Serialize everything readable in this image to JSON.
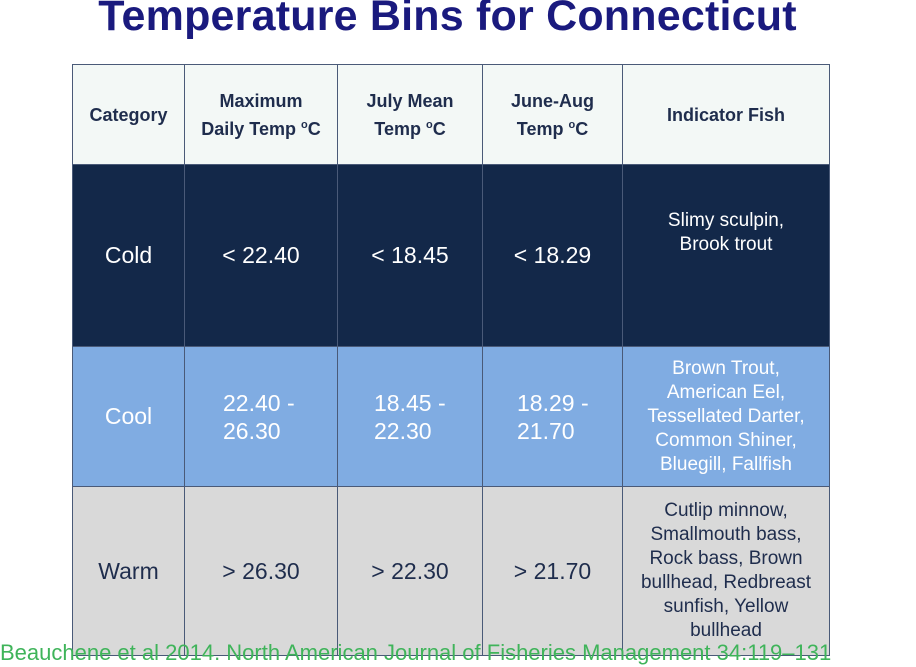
{
  "title": "Temperature Bins for Connecticut",
  "table": {
    "headers": {
      "category": "Category",
      "max_daily_line1": "Maximum",
      "max_daily_line2": "Daily Temp",
      "july_mean_line1": "July Mean",
      "july_mean_line2": "Temp",
      "june_aug_line1": "June-Aug",
      "june_aug_line2": "Temp",
      "unit_sup": "o",
      "unit": "C",
      "indicator_fish": "Indicator Fish"
    },
    "rows": [
      {
        "category": "Cold",
        "max_daily": "< 22.40",
        "july_mean": "< 18.45",
        "june_aug": "< 18.29",
        "fish": [
          "Slimy sculpin,",
          "Brook trout"
        ]
      },
      {
        "category": "Cool",
        "max_daily_line1": "22.40 -",
        "max_daily_line2": "26.30",
        "july_mean_line1": "18.45 -",
        "july_mean_line2": "22.30",
        "june_aug_line1": "18.29 -",
        "june_aug_line2": "21.70",
        "fish": [
          "Brown Trout,",
          "American Eel,",
          "Tessellated Darter,",
          "Common Shiner,",
          "Bluegill, Fallfish"
        ]
      },
      {
        "category": "Warm",
        "max_daily": "> 26.30",
        "july_mean": "> 22.30",
        "june_aug": "> 21.70",
        "fish": [
          "Cutlip minnow,",
          "Smallmouth bass,",
          "Rock bass, Brown",
          "bullhead, Redbreast",
          "sunfish, Yellow",
          "bullhead"
        ]
      }
    ]
  },
  "citation": "Beauchene et al 2014. North American Journal of Fisheries Management 34:119–131",
  "colors": {
    "title": "#1a1a7e",
    "header_bg": "#f3f8f6",
    "cold_bg": "#132849",
    "cool_bg": "#80ace2",
    "warm_bg": "#d9d9d9",
    "citation": "#3fb45a"
  }
}
